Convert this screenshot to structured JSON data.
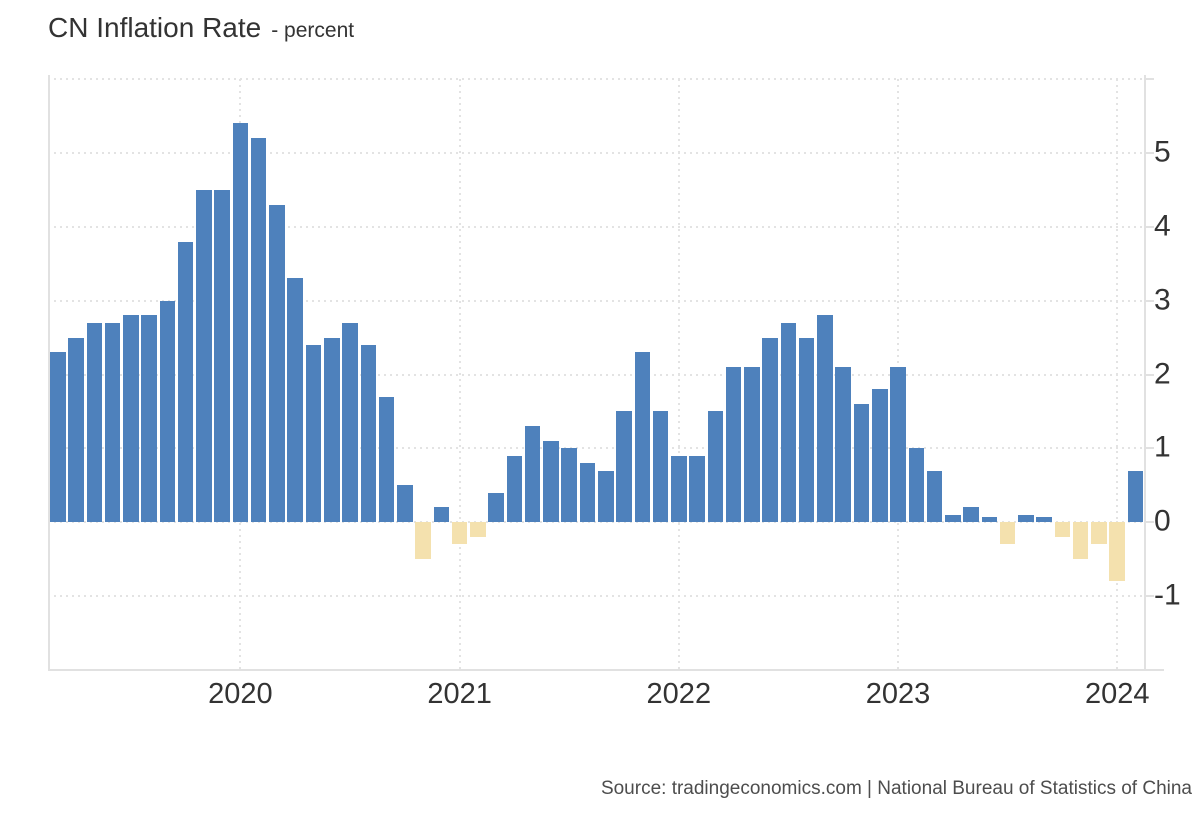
{
  "header": {
    "title": "CN Inflation Rate",
    "subtitle": "- percent"
  },
  "footer": {
    "source": "Source: tradingeconomics.com | National Bureau of Statistics of China"
  },
  "y_axis": {
    "ticks": [
      {
        "value": 5,
        "label": "5"
      },
      {
        "value": 4,
        "label": "4"
      },
      {
        "value": 3,
        "label": "3"
      },
      {
        "value": 2,
        "label": "2"
      },
      {
        "value": 1,
        "label": "1"
      },
      {
        "value": 0,
        "label": "0"
      },
      {
        "value": -1,
        "label": "-1"
      }
    ]
  },
  "x_axis": {
    "years": [
      {
        "label": "2020",
        "month_index": 10
      },
      {
        "label": "2021",
        "month_index": 22
      },
      {
        "label": "2022",
        "month_index": 34
      },
      {
        "label": "2023",
        "month_index": 46
      },
      {
        "label": "2024",
        "month_index": 58
      }
    ]
  },
  "chart_data": {
    "type": "bar",
    "title": "CN Inflation Rate",
    "unit": "percent",
    "ylim": [
      -2,
      6
    ],
    "y_gridlines": [
      6,
      5,
      4,
      3,
      2,
      1,
      0,
      -1
    ],
    "grid_style": "dotted",
    "positive_color": "#4e81bc",
    "negative_color": "#f4e1ae",
    "x": [
      "2019-03",
      "2019-04",
      "2019-05",
      "2019-06",
      "2019-07",
      "2019-08",
      "2019-09",
      "2019-10",
      "2019-11",
      "2019-12",
      "2020-01",
      "2020-02",
      "2020-03",
      "2020-04",
      "2020-05",
      "2020-06",
      "2020-07",
      "2020-08",
      "2020-09",
      "2020-10",
      "2020-11",
      "2020-12",
      "2021-01",
      "2021-02",
      "2021-03",
      "2021-04",
      "2021-05",
      "2021-06",
      "2021-07",
      "2021-08",
      "2021-09",
      "2021-10",
      "2021-11",
      "2021-12",
      "2022-01",
      "2022-02",
      "2022-03",
      "2022-04",
      "2022-05",
      "2022-06",
      "2022-07",
      "2022-08",
      "2022-09",
      "2022-10",
      "2022-11",
      "2022-12",
      "2023-01",
      "2023-02",
      "2023-03",
      "2023-04",
      "2023-05",
      "2023-06",
      "2023-07",
      "2023-08",
      "2023-09",
      "2023-10",
      "2023-11",
      "2023-12",
      "2024-01",
      "2024-02"
    ],
    "values": [
      2.3,
      2.5,
      2.7,
      2.7,
      2.8,
      2.8,
      3.0,
      3.8,
      4.5,
      4.5,
      5.4,
      5.2,
      4.3,
      3.3,
      2.4,
      2.5,
      2.7,
      2.4,
      1.7,
      0.5,
      -0.5,
      0.2,
      -0.3,
      -0.2,
      0.4,
      0.9,
      1.3,
      1.1,
      1.0,
      0.8,
      0.7,
      1.5,
      2.3,
      1.5,
      0.9,
      0.9,
      1.5,
      2.1,
      2.1,
      2.5,
      2.7,
      2.5,
      2.8,
      2.1,
      1.6,
      1.8,
      2.1,
      1.0,
      0.7,
      0.1,
      0.2,
      0.0,
      -0.3,
      0.1,
      0.0,
      -0.2,
      -0.5,
      -0.3,
      -0.8,
      0.7
    ]
  }
}
